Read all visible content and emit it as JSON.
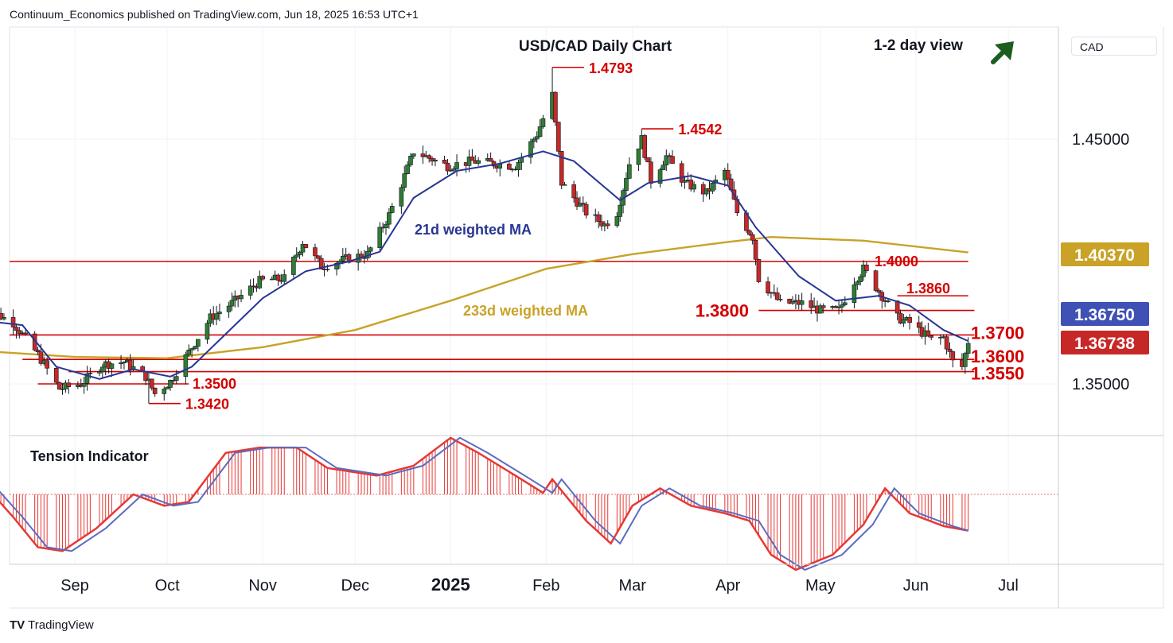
{
  "header": {
    "published": "Continuum_Economics published on TradingView.com, Jun 18, 2025 16:53 UTC+1",
    "chart_title": "USD/CAD Daily Chart",
    "view_label": "1-2 day view",
    "view_direction": "up-right-arrow-icon",
    "price_scale_label": "CAD",
    "footer_brand": "TradingView",
    "footer_logo": "TV"
  },
  "colors": {
    "up_candle": "#2e7d32",
    "down_candle": "#c62828",
    "ma21": "#283593",
    "ma233": "#c9a227",
    "level_line": "#d50000",
    "arrow": "#1b5e20",
    "tension_red": "#e53935",
    "tension_blue": "#5c6bc0"
  },
  "chart_data": [
    {
      "type": "candlestick",
      "title": "USD/CAD Daily Chart",
      "ylim": [
        1.335,
        1.485
      ],
      "y_ticks": [
        "1.45000",
        "1.35000"
      ],
      "x_ticks": [
        "Sep",
        "Oct",
        "Nov",
        "Dec",
        "2025",
        "Feb",
        "Mar",
        "Apr",
        "May",
        "Jun",
        "Jul"
      ],
      "x_tick_dates": [
        "2024-09-01",
        "2024-10-01",
        "2024-11-01",
        "2024-12-01",
        "2025-01-01",
        "2025-02-01",
        "2025-03-01",
        "2025-04-01",
        "2025-05-01",
        "2025-06-01",
        "2025-07-01"
      ],
      "anchors": [
        [
          "2024-08-01",
          1.382
        ],
        [
          "2024-08-12",
          1.375
        ],
        [
          "2024-08-20",
          1.362
        ],
        [
          "2024-08-27",
          1.348
        ],
        [
          "2024-09-03",
          1.35
        ],
        [
          "2024-09-10",
          1.358
        ],
        [
          "2024-09-17",
          1.359
        ],
        [
          "2024-09-24",
          1.353
        ],
        [
          "2024-09-27",
          1.346
        ],
        [
          "2024-10-02",
          1.351
        ],
        [
          "2024-10-08",
          1.363
        ],
        [
          "2024-10-15",
          1.377
        ],
        [
          "2024-10-22",
          1.383
        ],
        [
          "2024-10-31",
          1.392
        ],
        [
          "2024-11-08",
          1.393
        ],
        [
          "2024-11-14",
          1.408
        ],
        [
          "2024-11-20",
          1.398
        ],
        [
          "2024-11-28",
          1.401
        ],
        [
          "2024-12-05",
          1.403
        ],
        [
          "2024-12-12",
          1.419
        ],
        [
          "2024-12-18",
          1.438
        ],
        [
          "2024-12-20",
          1.445
        ],
        [
          "2024-12-31",
          1.439
        ],
        [
          "2025-01-08",
          1.441
        ],
        [
          "2025-01-15",
          1.44
        ],
        [
          "2025-01-22",
          1.439
        ],
        [
          "2025-01-29",
          1.452
        ],
        [
          "2025-02-03",
          1.468
        ],
        [
          "2025-02-06",
          1.432
        ],
        [
          "2025-02-14",
          1.42
        ],
        [
          "2025-02-20",
          1.415
        ],
        [
          "2025-02-24",
          1.42
        ],
        [
          "2025-02-28",
          1.44
        ],
        [
          "2025-03-04",
          1.45
        ],
        [
          "2025-03-07",
          1.433
        ],
        [
          "2025-03-12",
          1.443
        ],
        [
          "2025-03-18",
          1.432
        ],
        [
          "2025-03-25",
          1.428
        ],
        [
          "2025-03-31",
          1.437
        ],
        [
          "2025-04-04",
          1.42
        ],
        [
          "2025-04-09",
          1.41
        ],
        [
          "2025-04-11",
          1.393
        ],
        [
          "2025-04-18",
          1.383
        ],
        [
          "2025-04-25",
          1.383
        ],
        [
          "2025-05-01",
          1.38
        ],
        [
          "2025-05-07",
          1.38
        ],
        [
          "2025-05-12",
          1.392
        ],
        [
          "2025-05-15",
          1.397
        ],
        [
          "2025-05-21",
          1.386
        ],
        [
          "2025-05-26",
          1.377
        ],
        [
          "2025-05-30",
          1.375
        ],
        [
          "2025-06-03",
          1.371
        ],
        [
          "2025-06-06",
          1.368
        ],
        [
          "2025-06-10",
          1.369
        ],
        [
          "2025-06-13",
          1.359
        ],
        [
          "2025-06-16",
          1.357
        ],
        [
          "2025-06-18",
          1.3674
        ]
      ],
      "ma21_points": [
        [
          "2024-08-01",
          1.376
        ],
        [
          "2024-08-15",
          1.374
        ],
        [
          "2024-08-26",
          1.357
        ],
        [
          "2024-09-09",
          1.352
        ],
        [
          "2024-09-20",
          1.356
        ],
        [
          "2024-10-02",
          1.353
        ],
        [
          "2024-10-09",
          1.357
        ],
        [
          "2024-10-18",
          1.368
        ],
        [
          "2024-11-01",
          1.385
        ],
        [
          "2024-11-15",
          1.396
        ],
        [
          "2024-11-29",
          1.4
        ],
        [
          "2024-12-09",
          1.404
        ],
        [
          "2024-12-20",
          1.426
        ],
        [
          "2025-01-03",
          1.437
        ],
        [
          "2025-01-17",
          1.44
        ],
        [
          "2025-01-31",
          1.445
        ],
        [
          "2025-02-10",
          1.441
        ],
        [
          "2025-02-25",
          1.425
        ],
        [
          "2025-03-06",
          1.432
        ],
        [
          "2025-03-20",
          1.435
        ],
        [
          "2025-04-01",
          1.431
        ],
        [
          "2025-04-10",
          1.414
        ],
        [
          "2025-04-24",
          1.394
        ],
        [
          "2025-05-06",
          1.384
        ],
        [
          "2025-05-20",
          1.386
        ],
        [
          "2025-05-30",
          1.382
        ],
        [
          "2025-06-10",
          1.372
        ],
        [
          "2025-06-18",
          1.3675
        ]
      ],
      "ma233_points": [
        [
          "2024-08-01",
          1.3635
        ],
        [
          "2024-09-01",
          1.361
        ],
        [
          "2024-10-01",
          1.3605
        ],
        [
          "2024-11-01",
          1.365
        ],
        [
          "2024-12-01",
          1.372
        ],
        [
          "2025-01-01",
          1.384
        ],
        [
          "2025-02-01",
          1.397
        ],
        [
          "2025-03-01",
          1.403
        ],
        [
          "2025-04-01",
          1.408
        ],
        [
          "2025-04-15",
          1.41
        ],
        [
          "2025-05-15",
          1.4085
        ],
        [
          "2025-06-18",
          1.4037
        ]
      ],
      "highlights": [
        {
          "date": "2025-02-03",
          "high": 1.4793
        },
        {
          "date": "2025-03-04",
          "high": 1.4542
        },
        {
          "date": "2024-09-25",
          "low": 1.342
        }
      ],
      "levels": [
        {
          "value": 1.4,
          "label": "1.4000",
          "start": "2024-08-01",
          "end": "2025-06-18"
        },
        {
          "value": 1.386,
          "label": "1.3860",
          "start": "2025-05-26",
          "end": "2025-06-18"
        },
        {
          "value": 1.38,
          "label": "1.3800",
          "start": "2025-04-11",
          "end": "2025-06-20"
        },
        {
          "value": 1.37,
          "label": "1.3700",
          "start": "2024-08-01",
          "end": "2025-06-20"
        },
        {
          "value": 1.36,
          "label": "1.3600",
          "start": "2024-08-15",
          "end": "2025-06-20"
        },
        {
          "value": 1.355,
          "label": "1.3550",
          "start": "2024-08-30",
          "end": "2025-06-20"
        },
        {
          "value": 1.35,
          "label": "1.3500",
          "start": "2024-08-20",
          "end": "2024-10-08"
        }
      ],
      "peak_labels": [
        "1.4793",
        "1.4542",
        "1.3420"
      ],
      "level_labels": [
        "1.4000",
        "1.3860",
        "1.3800",
        "1.3700",
        "1.3600",
        "1.3550",
        "1.3500"
      ],
      "price_badges": [
        {
          "value": 1.4037,
          "label": "1.40370",
          "color": "#c9a227"
        },
        {
          "value": 1.3675,
          "label": "1.36750",
          "color": "#3f51b5"
        },
        {
          "value": 1.3674,
          "label": "1.36738",
          "color": "#c62828"
        }
      ],
      "series": [
        {
          "name": "21d weighted MA"
        },
        {
          "name": "233d weighted MA"
        }
      ]
    },
    {
      "type": "area",
      "title": "Tension Indicator",
      "ylim": [
        -1.1,
        0.85
      ],
      "points": [
        [
          "2024-08-01",
          0.2
        ],
        [
          "2024-08-12",
          -0.3
        ],
        [
          "2024-08-20",
          -0.7
        ],
        [
          "2024-08-28",
          -0.75
        ],
        [
          "2024-09-08",
          -0.45
        ],
        [
          "2024-09-20",
          0.0
        ],
        [
          "2024-09-30",
          -0.15
        ],
        [
          "2024-10-08",
          -0.1
        ],
        [
          "2024-10-20",
          0.55
        ],
        [
          "2024-10-31",
          0.62
        ],
        [
          "2024-11-12",
          0.62
        ],
        [
          "2024-11-22",
          0.35
        ],
        [
          "2024-12-08",
          0.25
        ],
        [
          "2024-12-20",
          0.38
        ],
        [
          "2025-01-01",
          0.75
        ],
        [
          "2025-01-10",
          0.55
        ],
        [
          "2025-01-22",
          0.25
        ],
        [
          "2025-01-31",
          0.02
        ],
        [
          "2025-02-03",
          0.2
        ],
        [
          "2025-02-14",
          -0.35
        ],
        [
          "2025-02-22",
          -0.65
        ],
        [
          "2025-03-01",
          -0.15
        ],
        [
          "2025-03-10",
          0.08
        ],
        [
          "2025-03-20",
          -0.15
        ],
        [
          "2025-03-31",
          -0.25
        ],
        [
          "2025-04-08",
          -0.35
        ],
        [
          "2025-04-15",
          -0.8
        ],
        [
          "2025-04-23",
          -1.0
        ],
        [
          "2025-05-05",
          -0.8
        ],
        [
          "2025-05-15",
          -0.4
        ],
        [
          "2025-05-22",
          0.08
        ],
        [
          "2025-05-30",
          -0.25
        ],
        [
          "2025-06-10",
          -0.42
        ],
        [
          "2025-06-18",
          -0.48
        ]
      ]
    }
  ],
  "chart_text": {
    "label_4793": "1.4793",
    "label_4542": "1.4542",
    "label_3420": "1.3420",
    "label_4000": "1.4000",
    "label_3860": "1.3860",
    "label_3800": "1.3800",
    "label_3700": "1.3700",
    "label_3600": "1.3600",
    "label_3550": "1.3550",
    "label_3500": "1.3500",
    "ma21_label": "21d weighted MA",
    "ma233_label": "233d weighted MA",
    "tension_label": "Tension Indicator"
  }
}
